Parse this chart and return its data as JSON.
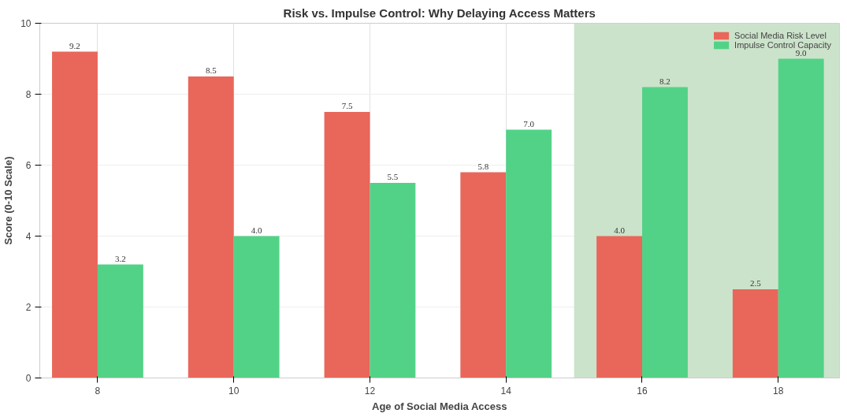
{
  "chart_data": {
    "type": "bar",
    "title": "Risk vs. Impulse Control: Why Delaying Access Matters",
    "xlabel": "Age of Social Media Access",
    "ylabel": "Score (0-10 Scale)",
    "x": [
      8,
      10,
      12,
      14,
      16,
      18
    ],
    "series": [
      {
        "name": "Social Media Risk Level",
        "color": "#e8675a",
        "values": [
          9.2,
          8.5,
          7.5,
          5.8,
          4.0,
          2.5
        ],
        "value_labels": [
          "9.2",
          "8.5",
          "7.5",
          "5.8",
          "4.0",
          "2.5"
        ]
      },
      {
        "name": "Impulse Control Capacity",
        "color": "#52d286",
        "values": [
          3.2,
          4.0,
          5.5,
          7.0,
          8.2,
          9.0
        ],
        "value_labels": [
          "3.2",
          "4.0",
          "5.5",
          "7.0",
          "8.2",
          "9.0"
        ]
      }
    ],
    "xlim": [
      7.15,
      18.9
    ],
    "xticks": [
      8,
      10,
      12,
      14,
      16,
      18
    ],
    "ylim": [
      0,
      10
    ],
    "yticks": [
      0,
      2,
      4,
      6,
      8,
      10
    ],
    "bands": [
      {
        "axis": "x",
        "from": 15,
        "to": 18.9,
        "color": "#cce3cb"
      }
    ],
    "grid": true,
    "legend": "top right"
  }
}
